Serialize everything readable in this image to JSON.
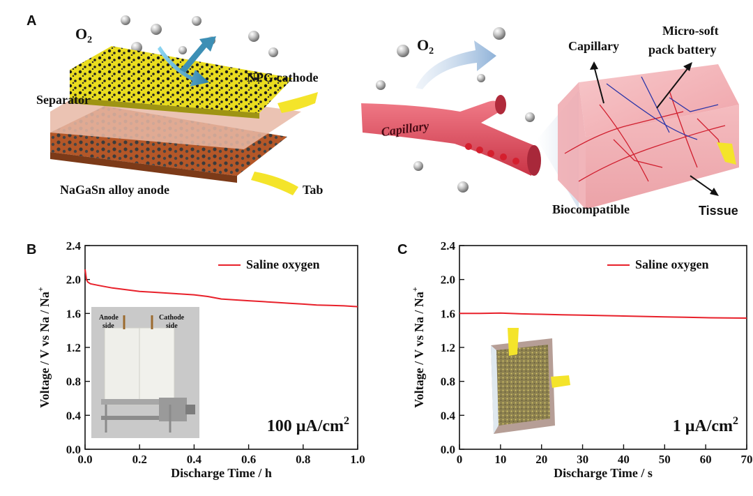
{
  "figure": {
    "panel_labels": [
      "A",
      "B",
      "C"
    ],
    "panel_a": {
      "left": {
        "o2": "O",
        "o2_sub": "2",
        "cathode": "NPG cathode",
        "separator": "Separator",
        "anode": "NaGaSn alloy anode",
        "tab": "Tab"
      },
      "right": {
        "o2": "O",
        "o2_sub": "2",
        "capillary_vessel": "Capillary",
        "capillary": "Capillary",
        "battery_line1": "Micro-soft",
        "battery_line2": "pack battery",
        "biocompatible": "Biocompatible",
        "tissue": "Tissue"
      }
    },
    "inset_b": {
      "anode_line1": "Anode",
      "anode_line2": "side",
      "cathode_line1": "Cathode",
      "cathode_line2": "side"
    },
    "colors": {
      "line": "#e8202a",
      "tissue": "#f2a7ad",
      "vessel": "#e0505f",
      "cathode": "#e6d620",
      "anode": "#b85a2a",
      "tab": "#f4e42a"
    }
  },
  "chart_data": [
    {
      "type": "line",
      "panel": "B",
      "xlabel": "Discharge Time / h",
      "ylabel": "Voltage / V vs Na / Na",
      "ylabel_sup": "+",
      "xlim": [
        0.0,
        1.0
      ],
      "ylim": [
        0.0,
        2.4
      ],
      "xticks": [
        "0.0",
        "0.2",
        "0.4",
        "0.6",
        "0.8",
        "1.0"
      ],
      "yticks": [
        "0.0",
        "0.4",
        "0.8",
        "1.2",
        "1.6",
        "2.0",
        "2.4"
      ],
      "legend": "Saline oxygen",
      "legend_position": "top-right",
      "annotation": "100 μA/cm",
      "annotation_sup": "2",
      "series": [
        {
          "name": "Saline oxygen",
          "x": [
            0.0,
            0.005,
            0.01,
            0.02,
            0.05,
            0.1,
            0.15,
            0.2,
            0.25,
            0.3,
            0.35,
            0.4,
            0.45,
            0.5,
            0.55,
            0.6,
            0.65,
            0.7,
            0.75,
            0.8,
            0.85,
            0.9,
            0.95,
            1.0
          ],
          "y": [
            2.12,
            2.0,
            1.97,
            1.95,
            1.93,
            1.9,
            1.88,
            1.86,
            1.85,
            1.84,
            1.83,
            1.82,
            1.8,
            1.77,
            1.76,
            1.75,
            1.74,
            1.73,
            1.72,
            1.71,
            1.7,
            1.695,
            1.69,
            1.68
          ]
        }
      ]
    },
    {
      "type": "line",
      "panel": "C",
      "xlabel": "Discharge Time / s",
      "ylabel": "Voltage / V vs Na / Na",
      "ylabel_sup": "+",
      "xlim": [
        0,
        70
      ],
      "ylim": [
        0.0,
        2.4
      ],
      "xticks": [
        "0",
        "10",
        "20",
        "30",
        "40",
        "50",
        "60",
        "70"
      ],
      "yticks": [
        "0.0",
        "0.4",
        "0.8",
        "1.2",
        "1.6",
        "2.0",
        "2.4"
      ],
      "legend": "Saline oxygen",
      "legend_position": "top-right",
      "annotation": "1 μA/cm",
      "annotation_sup": "2",
      "series": [
        {
          "name": "Saline oxygen",
          "x": [
            0,
            5,
            10,
            15,
            20,
            25,
            30,
            35,
            40,
            45,
            50,
            55,
            60,
            65,
            70
          ],
          "y": [
            1.6,
            1.6,
            1.605,
            1.595,
            1.59,
            1.585,
            1.58,
            1.575,
            1.57,
            1.565,
            1.56,
            1.555,
            1.55,
            1.548,
            1.545
          ]
        }
      ]
    }
  ]
}
